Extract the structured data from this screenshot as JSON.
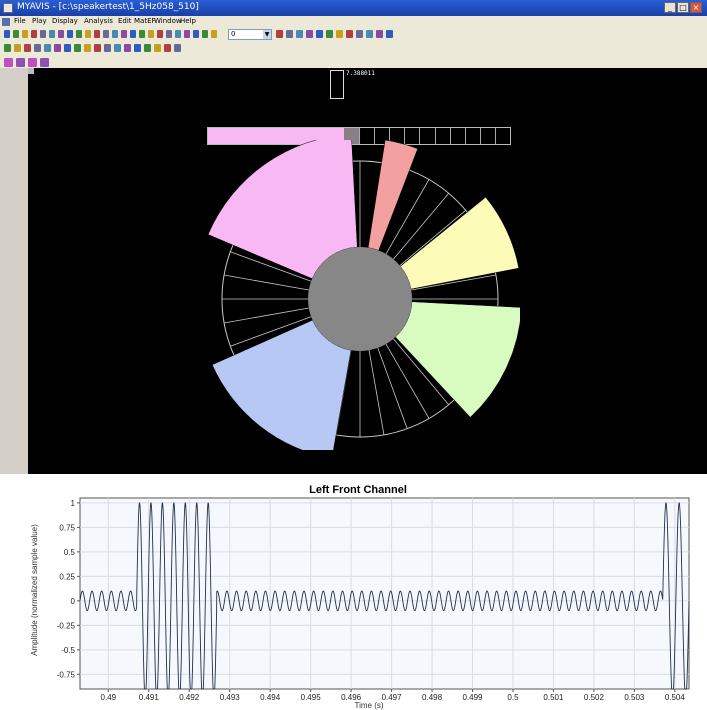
{
  "window": {
    "title": "MYAVIS - [c:\\speakertest\\1_5Hz058_510]",
    "min_label": "_",
    "max_label": "□",
    "close_label": "×"
  },
  "menu": [
    "File",
    "Play",
    "Display",
    "Analysis",
    "Edit",
    "MatEF",
    "Window",
    "Help"
  ],
  "toolbar": {
    "frame_value": "0",
    "colors": [
      "#2d5dbd",
      "#3a8a3a",
      "#c8a020",
      "#b04040",
      "#6a6a9a",
      "#4a8ab0",
      "#8a4aa0"
    ]
  },
  "viewport": {
    "time_readout": "7.388011",
    "level_fraction": 0.45,
    "level_cells": 10
  },
  "speaker_wheel": {
    "hub_color": "#878787",
    "ring_color": "#c8c8c8",
    "sectors": [
      {
        "name": "left-front",
        "color": "#f8b8f4",
        "level": 1.0
      },
      {
        "name": "center",
        "color": "#f2a0a0",
        "level": 0.85
      },
      {
        "name": "right-front",
        "color": "#fcfcb8",
        "level": 0.88
      },
      {
        "name": "right-surround",
        "color": "#d8fcc0",
        "level": 0.88
      },
      {
        "name": "left-surround",
        "color": "#b8c8f4",
        "level": 0.88
      }
    ]
  },
  "chart_data": {
    "type": "line",
    "title": "Left Front Channel",
    "xlabel": "Time (s)",
    "ylabel": "Amplitude (normalized sample value)",
    "xlim": [
      0.4893,
      0.50435
    ],
    "ylim": [
      -0.9,
      1.05
    ],
    "xticks": [
      "0.49",
      "0.491",
      "0.492",
      "0.493",
      "0.494",
      "0.495",
      "0.496",
      "0.497",
      "0.498",
      "0.499",
      "0.5",
      "0.501",
      "0.502",
      "0.503",
      "0.504"
    ],
    "yticks": [
      "1",
      "0.75",
      "0.5",
      "0.25",
      "0",
      "-0.25",
      "-0.5",
      "-0.75"
    ],
    "grid": true,
    "series": [
      {
        "color": "#22304a",
        "bursts": [
          {
            "start": 0.4907,
            "end": 0.49268,
            "amplitude": 1.0,
            "cycles": 7
          },
          {
            "start": 0.5037,
            "end": 0.50435,
            "amplitude": 1.0,
            "cycles": 2
          }
        ],
        "base_amplitude": 0.1,
        "base_cycles_per_ms": 4.2
      }
    ]
  }
}
